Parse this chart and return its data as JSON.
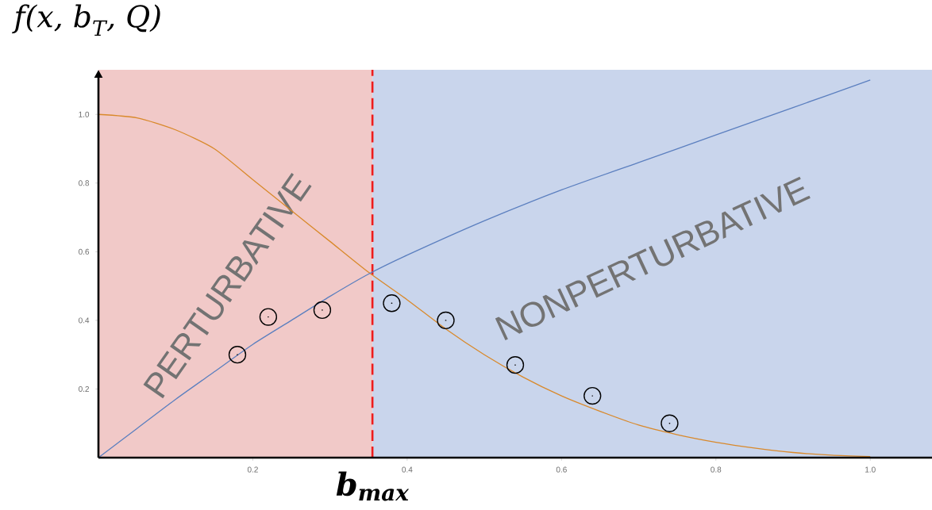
{
  "chart_data": {
    "type": "line",
    "ylabel": "f(x, b$_{T}$, Q)",
    "xlim": [
      0,
      1.08
    ],
    "ylim": [
      0,
      1.13
    ],
    "xticks": [
      {
        "value": 0.2,
        "label": "0.2"
      },
      {
        "value": 0.4,
        "label": "0.4"
      },
      {
        "value": 0.6,
        "label": "0.6"
      },
      {
        "value": 0.8,
        "label": "0.8"
      },
      {
        "value": 1.0,
        "label": "1.0"
      }
    ],
    "yticks": [
      {
        "value": 0.2,
        "label": "0.2"
      },
      {
        "value": 0.4,
        "label": "0.4"
      },
      {
        "value": 0.6,
        "label": "0.6"
      },
      {
        "value": 0.8,
        "label": "0.8"
      },
      {
        "value": 1.0,
        "label": "1.0"
      }
    ],
    "bands": [
      {
        "axis": "x",
        "from": 0,
        "to": 0.355,
        "label": "PERTURBATIVE",
        "color": "#f1c9c8"
      },
      {
        "axis": "x",
        "from": 0.355,
        "to": 1.08,
        "label": "NONPERTURBATIVE",
        "color": "#c9d5ec"
      }
    ],
    "ref_lines": [
      {
        "axis": "x",
        "value": 0.355,
        "label": "b$_{max}$",
        "color": "#ee1c1c",
        "line_style": "dashed"
      }
    ],
    "series": [
      {
        "color": "#d9892b",
        "x": [
          0,
          0.05,
          0.1,
          0.15,
          0.2,
          0.25,
          0.3,
          0.35,
          0.4,
          0.45,
          0.5,
          0.55,
          0.6,
          0.65,
          0.7,
          0.75,
          0.8,
          0.85,
          0.9,
          0.95,
          1.0
        ],
        "values": [
          1.0,
          0.99,
          0.955,
          0.9,
          0.81,
          0.72,
          0.63,
          0.54,
          0.46,
          0.375,
          0.3,
          0.235,
          0.18,
          0.135,
          0.095,
          0.067,
          0.045,
          0.028,
          0.015,
          0.007,
          0.003
        ]
      },
      {
        "color": "#5b7fbf",
        "x": [
          0,
          0.05,
          0.1,
          0.15,
          0.2,
          0.25,
          0.3,
          0.35,
          0.4,
          0.5,
          0.6,
          0.7,
          0.8,
          0.9,
          1.0
        ],
        "values": [
          0,
          0.085,
          0.17,
          0.25,
          0.33,
          0.4,
          0.47,
          0.535,
          0.59,
          0.69,
          0.78,
          0.86,
          0.94,
          1.02,
          1.1
        ]
      },
      {
        "type": "scatter",
        "color": "#000000",
        "marker": "circle",
        "x": [
          0.18,
          0.22,
          0.29,
          0.38,
          0.45,
          0.54,
          0.64,
          0.74
        ],
        "values": [
          0.3,
          0.41,
          0.43,
          0.45,
          0.4,
          0.27,
          0.18,
          0.1
        ]
      }
    ]
  }
}
